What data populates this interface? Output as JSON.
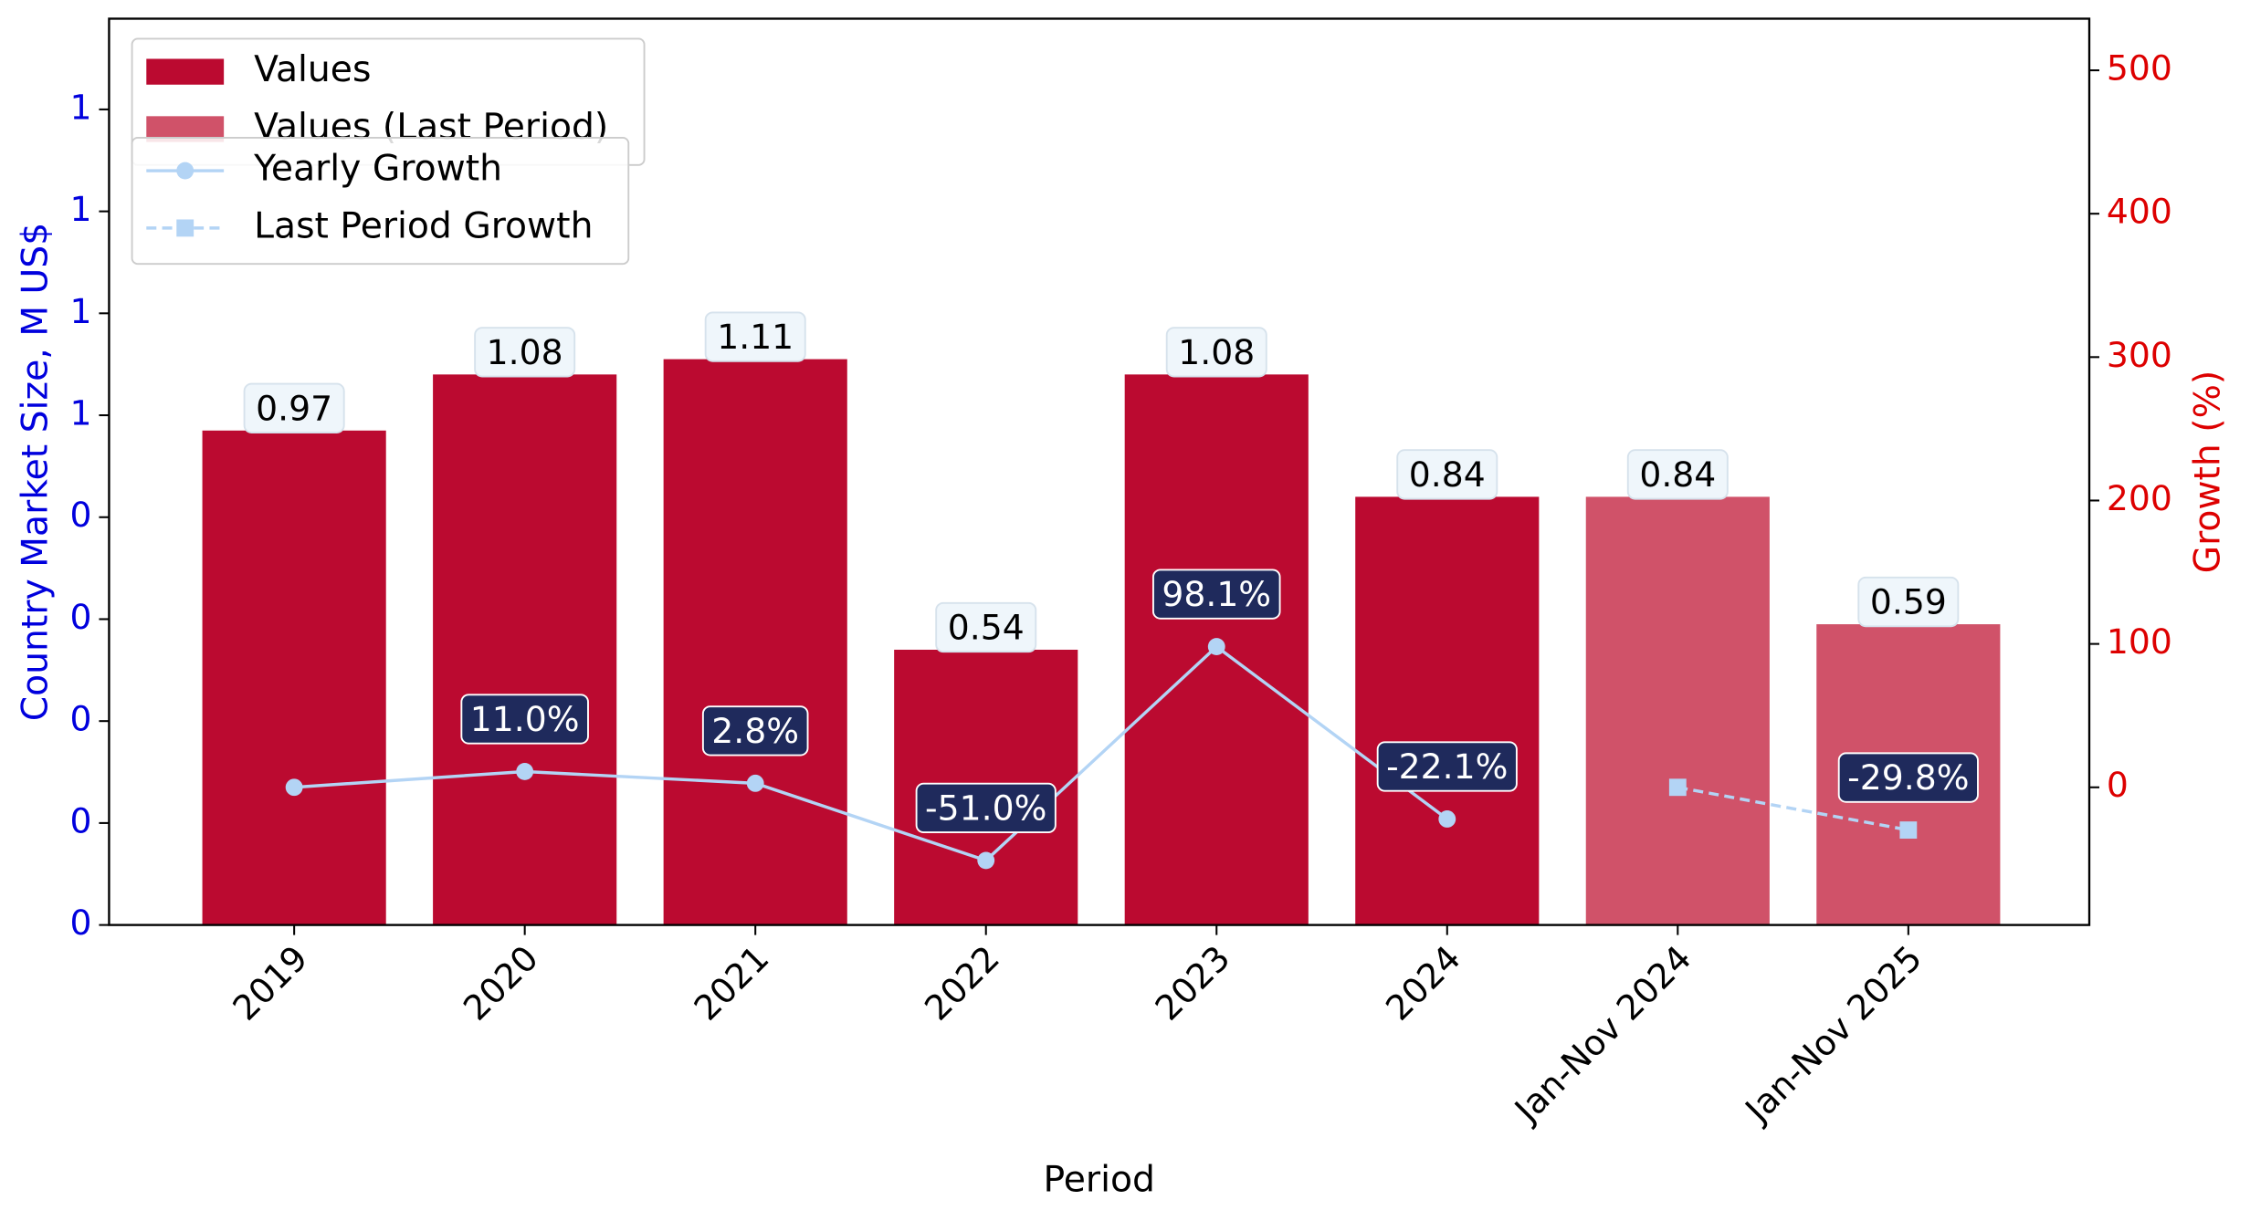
{
  "chart_data": {
    "type": "bar",
    "xlabel": "Period",
    "ylabel": "Country Market Size, M US$",
    "y2label": "Growth (%)",
    "categories": [
      "2019",
      "2020",
      "2021",
      "2022",
      "2023",
      "2024",
      "Jan-Nov 2024",
      "Jan-Nov 2025"
    ],
    "series": [
      {
        "name": "Values",
        "type": "bar",
        "color": "#bb0a30",
        "values": [
          0.97,
          1.08,
          1.11,
          0.54,
          1.08,
          0.84,
          null,
          null
        ]
      },
      {
        "name": "Values (Last Period)",
        "type": "bar",
        "color": "#d05269",
        "values": [
          null,
          null,
          null,
          null,
          null,
          null,
          0.84,
          0.59
        ]
      },
      {
        "name": "Yearly Growth",
        "type": "line",
        "axis": "y2",
        "color": "#b3d4f5",
        "marker": "circle",
        "dash": false,
        "values": [
          0,
          11.0,
          2.8,
          -51.0,
          98.1,
          -22.1,
          null,
          null
        ],
        "value_labels": [
          null,
          "11.0%",
          "2.8%",
          "-51.0%",
          "98.1%",
          "-22.1%",
          null,
          null
        ]
      },
      {
        "name": "Last Period Growth",
        "type": "line",
        "axis": "y2",
        "color": "#b3d4f5",
        "marker": "square",
        "dash": true,
        "values": [
          null,
          null,
          null,
          null,
          null,
          null,
          0,
          -29.8
        ],
        "value_labels": [
          null,
          null,
          null,
          null,
          null,
          null,
          null,
          "-29.8%"
        ]
      }
    ],
    "ylim": [
      0,
      1.778
    ],
    "yticks": [
      {
        "value": 0,
        "label": "0"
      },
      {
        "value": 0.2,
        "label": "0"
      },
      {
        "value": 0.4,
        "label": "0"
      },
      {
        "value": 0.6,
        "label": "0"
      },
      {
        "value": 0.8,
        "label": "0"
      },
      {
        "value": 1.0,
        "label": "1"
      },
      {
        "value": 1.2,
        "label": "1"
      },
      {
        "value": 1.4,
        "label": "1"
      },
      {
        "value": 1.6,
        "label": "1"
      }
    ],
    "y2lim": [
      -96,
      536
    ],
    "y2ticks": [
      0,
      100,
      200,
      300,
      400,
      500
    ],
    "ylabel_color": "#0000dd",
    "y2label_color": "#dd0000",
    "legend": "upper left"
  }
}
